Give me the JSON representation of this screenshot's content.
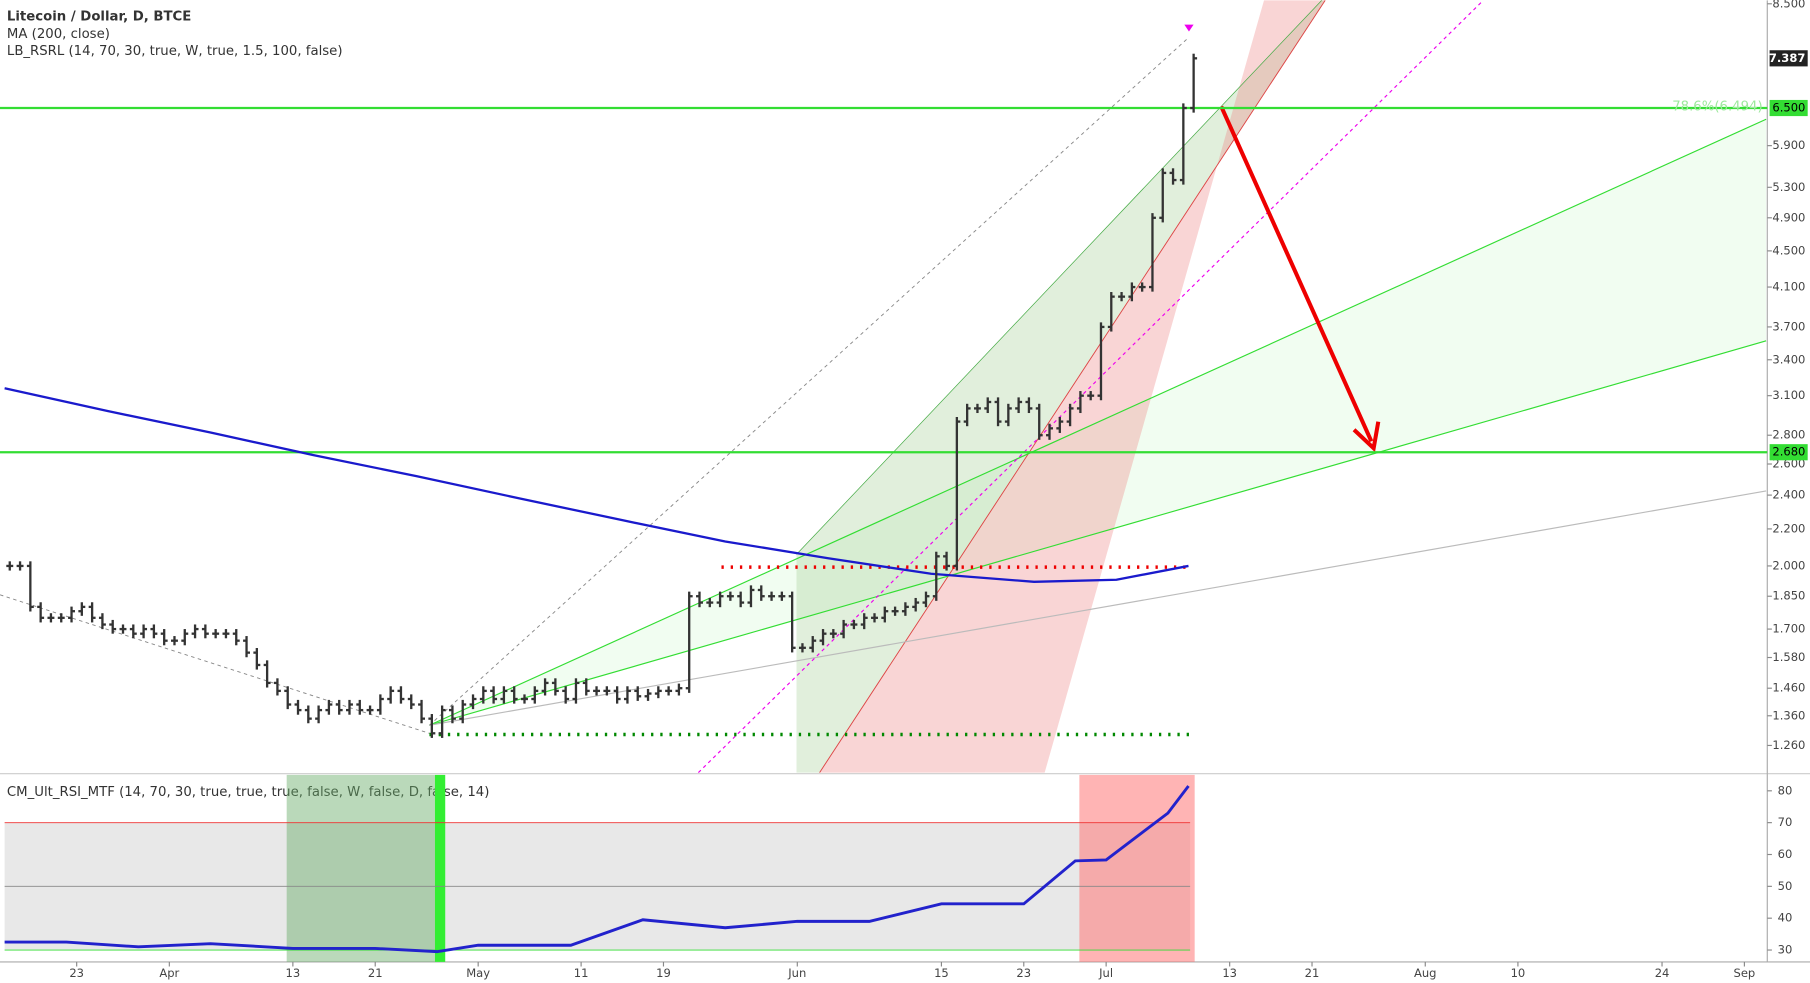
{
  "chart_data": [
    {
      "type": "ohlc",
      "title": "Litecoin / Dollar, D, BTCE",
      "subtitle": "MA (200, close)",
      "indicator": "LB_RSRL (14, 70, 30, true, W, true, 1.5, 100, false)",
      "log_scale": true,
      "ylim": [
        1.175,
        8.5
      ],
      "xlim": [
        0,
        171
      ],
      "yticks": [
        {
          "value": 1.26,
          "label": "1.260"
        },
        {
          "value": 1.36,
          "label": "1.360"
        },
        {
          "value": 1.46,
          "label": "1.460"
        },
        {
          "value": 1.58,
          "label": "1.580"
        },
        {
          "value": 1.7,
          "label": "1.700"
        },
        {
          "value": 1.85,
          "label": "1.850"
        },
        {
          "value": 2.0,
          "label": "2.000"
        },
        {
          "value": 2.2,
          "label": "2.200"
        },
        {
          "value": 2.4,
          "label": "2.400"
        },
        {
          "value": 2.6,
          "label": "2.600"
        },
        {
          "value": 2.8,
          "label": "2.800"
        },
        {
          "value": 3.1,
          "label": "3.100"
        },
        {
          "value": 3.4,
          "label": "3.400"
        },
        {
          "value": 3.7,
          "label": "3.700"
        },
        {
          "value": 4.1,
          "label": "4.100"
        },
        {
          "value": 4.5,
          "label": "4.500"
        },
        {
          "value": 4.9,
          "label": "4.900"
        },
        {
          "value": 5.3,
          "label": "5.300"
        },
        {
          "value": 5.9,
          "label": "5.900"
        },
        {
          "value": 8.5,
          "label": "8.500"
        }
      ],
      "xticks": [
        {
          "value": 7,
          "label": "23"
        },
        {
          "value": 16,
          "label": "Apr"
        },
        {
          "value": 28,
          "label": "13"
        },
        {
          "value": 36,
          "label": "21"
        },
        {
          "value": 46,
          "label": "May"
        },
        {
          "value": 56,
          "label": "11"
        },
        {
          "value": 64,
          "label": "19"
        },
        {
          "value": 77,
          "label": "Jun"
        },
        {
          "value": 91,
          "label": "15"
        },
        {
          "value": 99,
          "label": "23"
        },
        {
          "value": 107,
          "label": "Jul"
        },
        {
          "value": 119,
          "label": "13"
        },
        {
          "value": 127,
          "label": "21"
        },
        {
          "value": 138,
          "label": "Aug"
        },
        {
          "value": 147,
          "label": "10"
        },
        {
          "value": 161,
          "label": "24"
        },
        {
          "value": 169,
          "label": "Sep"
        }
      ],
      "close": [
        2.0,
        2.0,
        1.8,
        1.75,
        1.75,
        1.75,
        1.78,
        1.8,
        1.75,
        1.72,
        1.7,
        1.7,
        1.68,
        1.7,
        1.68,
        1.65,
        1.65,
        1.68,
        1.7,
        1.68,
        1.68,
        1.68,
        1.65,
        1.6,
        1.55,
        1.48,
        1.45,
        1.4,
        1.38,
        1.35,
        1.38,
        1.4,
        1.38,
        1.4,
        1.38,
        1.38,
        1.42,
        1.45,
        1.42,
        1.4,
        1.35,
        1.3,
        1.38,
        1.35,
        1.4,
        1.42,
        1.45,
        1.42,
        1.45,
        1.42,
        1.42,
        1.45,
        1.48,
        1.45,
        1.42,
        1.48,
        1.45,
        1.45,
        1.45,
        1.42,
        1.45,
        1.43,
        1.44,
        1.45,
        1.45,
        1.46,
        1.85,
        1.82,
        1.82,
        1.85,
        1.85,
        1.82,
        1.88,
        1.85,
        1.85,
        1.85,
        1.62,
        1.62,
        1.65,
        1.68,
        1.68,
        1.72,
        1.72,
        1.75,
        1.75,
        1.78,
        1.78,
        1.8,
        1.82,
        1.85,
        2.05,
        2.0,
        2.9,
        3.0,
        3.0,
        3.05,
        2.9,
        3.0,
        3.05,
        3.0,
        2.8,
        2.85,
        2.9,
        3.0,
        3.1,
        3.1,
        3.7,
        4.0,
        4.0,
        4.1,
        4.1,
        4.9,
        5.5,
        5.4,
        6.5,
        7.387
      ],
      "bar_color": "#333333",
      "ma": {
        "name": "MA (200, close)",
        "color": "#1a1acc",
        "x": [
          0,
          10,
          20,
          30,
          40,
          50,
          60,
          70,
          80,
          90,
          100,
          108,
          115
        ],
        "values": [
          3.16,
          2.98,
          2.82,
          2.66,
          2.52,
          2.38,
          2.25,
          2.13,
          2.04,
          1.96,
          1.92,
          1.93,
          2.0
        ]
      },
      "levels": [
        {
          "value": 6.5,
          "label": "6.500"
        },
        {
          "value": 2.68,
          "label": "2.680"
        }
      ],
      "level_color": "#33dd33",
      "last_price": 7.387,
      "annotation": "78.6%(6.494)"
    },
    {
      "type": "rsi",
      "title": "CM_Ult_RSI_MTF (14, 70, 30, true, true, true, false, W, false, D, false, 14)",
      "ylim": [
        27,
        85
      ],
      "yticks": [
        30,
        40,
        50,
        60,
        70,
        80
      ],
      "x": [
        0,
        6,
        13,
        20,
        28,
        36,
        42,
        46,
        50,
        55,
        62,
        70,
        77,
        84,
        91,
        99,
        104,
        107,
        113,
        115
      ],
      "values": [
        32.5,
        32.5,
        31,
        32,
        30.5,
        30.5,
        29.5,
        31.5,
        31.5,
        31.5,
        39.5,
        37,
        39,
        39,
        44.5,
        44.5,
        58,
        58.3,
        73,
        81.5
      ],
      "color": "#2222cc"
    }
  ]
}
